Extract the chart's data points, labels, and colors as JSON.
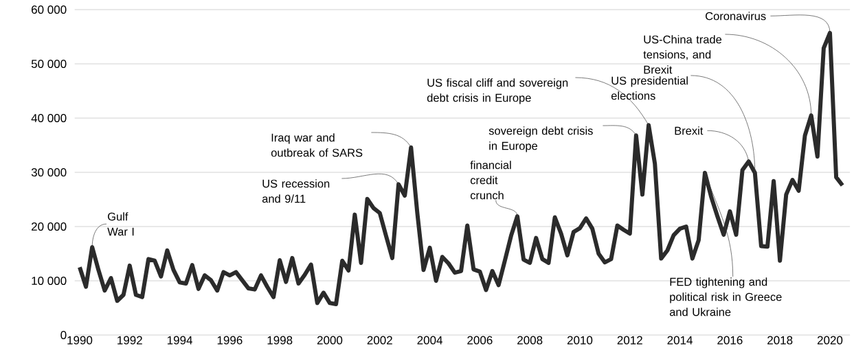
{
  "chart_data": {
    "type": "line",
    "color": "#2b2b2b",
    "grid": "y",
    "x": [
      1990.0,
      1990.25,
      1990.5,
      1990.75,
      1991.0,
      1991.25,
      1991.5,
      1991.75,
      1992.0,
      1992.25,
      1992.5,
      1992.75,
      1993.0,
      1993.25,
      1993.5,
      1993.75,
      1994.0,
      1994.25,
      1994.5,
      1994.75,
      1995.0,
      1995.25,
      1995.5,
      1995.75,
      1996.0,
      1996.25,
      1996.5,
      1996.75,
      1997.0,
      1997.25,
      1997.5,
      1997.75,
      1998.0,
      1998.25,
      1998.5,
      1998.75,
      1999.0,
      1999.25,
      1999.5,
      1999.75,
      2000.0,
      2000.25,
      2000.5,
      2000.75,
      2001.0,
      2001.25,
      2001.5,
      2001.75,
      2002.0,
      2002.25,
      2002.5,
      2002.75,
      2003.0,
      2003.25,
      2003.5,
      2003.75,
      2004.0,
      2004.25,
      2004.5,
      2004.75,
      2005.0,
      2005.25,
      2005.5,
      2005.75,
      2006.0,
      2006.25,
      2006.5,
      2006.75,
      2007.0,
      2007.25,
      2007.5,
      2007.75,
      2008.0,
      2008.25,
      2008.5,
      2008.75,
      2009.0,
      2009.25,
      2009.5,
      2009.75,
      2010.0,
      2010.25,
      2010.5,
      2010.75,
      2011.0,
      2011.25,
      2011.5,
      2011.75,
      2012.0,
      2012.25,
      2012.5,
      2012.75,
      2013.0,
      2013.25,
      2013.5,
      2013.75,
      2014.0,
      2014.25,
      2014.5,
      2014.75,
      2015.0,
      2015.25,
      2015.5,
      2015.75,
      2016.0,
      2016.25,
      2016.5,
      2016.75,
      2017.0,
      2017.25,
      2017.5,
      2017.75,
      2018.0,
      2018.25,
      2018.5,
      2018.75,
      2019.0,
      2019.25,
      2019.5,
      2019.75,
      2020.0,
      2020.25,
      2020.5
    ],
    "values": [
      12500,
      8900,
      16200,
      12000,
      8200,
      10500,
      6300,
      7400,
      12800,
      7400,
      7000,
      14000,
      13700,
      10800,
      15600,
      12000,
      9700,
      9500,
      12900,
      8500,
      11000,
      10100,
      8200,
      11600,
      11000,
      11600,
      10100,
      8600,
      8400,
      11000,
      8900,
      7000,
      13800,
      9800,
      14200,
      9500,
      11100,
      13000,
      5900,
      7800,
      5900,
      5700,
      13700,
      11900,
      22200,
      13300,
      25100,
      23400,
      22500,
      18300,
      14200,
      27800,
      25700,
      34600,
      22500,
      12000,
      16100,
      10000,
      14400,
      13200,
      11500,
      11800,
      20200,
      12100,
      11700,
      8300,
      11800,
      9200,
      13700,
      18300,
      21900,
      13900,
      13300,
      17900,
      14000,
      13300,
      21700,
      18700,
      14700,
      19000,
      19700,
      21500,
      19600,
      15000,
      13400,
      14000,
      20200,
      19400,
      18700,
      36800,
      25900,
      38700,
      31600,
      14100,
      15600,
      18400,
      19600,
      20000,
      14100,
      17500,
      29900,
      25500,
      21900,
      18500,
      22800,
      18500,
      30400,
      32000,
      29900,
      16400,
      16300,
      28400,
      13700,
      25900,
      28600,
      26600,
      36800,
      40500,
      32900,
      52900,
      55700,
      29100,
      27600
    ],
    "xlim": [
      1989.8,
      2020.8
    ],
    "xticks": [
      1990,
      1992,
      1994,
      1996,
      1998,
      2000,
      2002,
      2004,
      2006,
      2008,
      2010,
      2012,
      2014,
      2016,
      2018,
      2020
    ],
    "ylim": [
      0,
      60000
    ],
    "yticks": [
      0,
      {
        "value": 10000,
        "label": "10 000"
      },
      {
        "value": 20000,
        "label": "20 000"
      },
      {
        "value": 30000,
        "label": "30 000"
      },
      {
        "value": 40000,
        "label": "40 000"
      },
      {
        "value": 50000,
        "label": "50 000"
      },
      {
        "value": 60000,
        "label": "60 000"
      }
    ],
    "annotations": [
      {
        "text": "Gulf War I",
        "x": 1990.5,
        "y": 16200
      },
      {
        "text": "US recession and 9/11",
        "x": 2002.75,
        "y": 27800
      },
      {
        "text": "Iraq war and outbreak of SARS",
        "x": 2003.25,
        "y": 34600
      },
      {
        "text": "financial credit crunch",
        "x": 2007.5,
        "y": 21900
      },
      {
        "text": "US fiscal cliff and sovereign debt crisis in Europe",
        "x": 2012.75,
        "y": 38700
      },
      {
        "text": "sovereign debt crisis in Europe",
        "x": 2012.25,
        "y": 36800
      },
      {
        "text": "US presidential elections",
        "x": 2017.0,
        "y": 29900
      },
      {
        "text": "Brexit",
        "x": 2016.75,
        "y": 32000
      },
      {
        "text": "US-China trade tensions, and Brexit",
        "x": 2019.25,
        "y": 40500
      },
      {
        "text": "Coronavirus",
        "x": 2020.0,
        "y": 55700
      },
      {
        "text": "FED tightening and political risk in Greece and Ukraine",
        "x": 2015.0,
        "y": 29900
      }
    ]
  }
}
